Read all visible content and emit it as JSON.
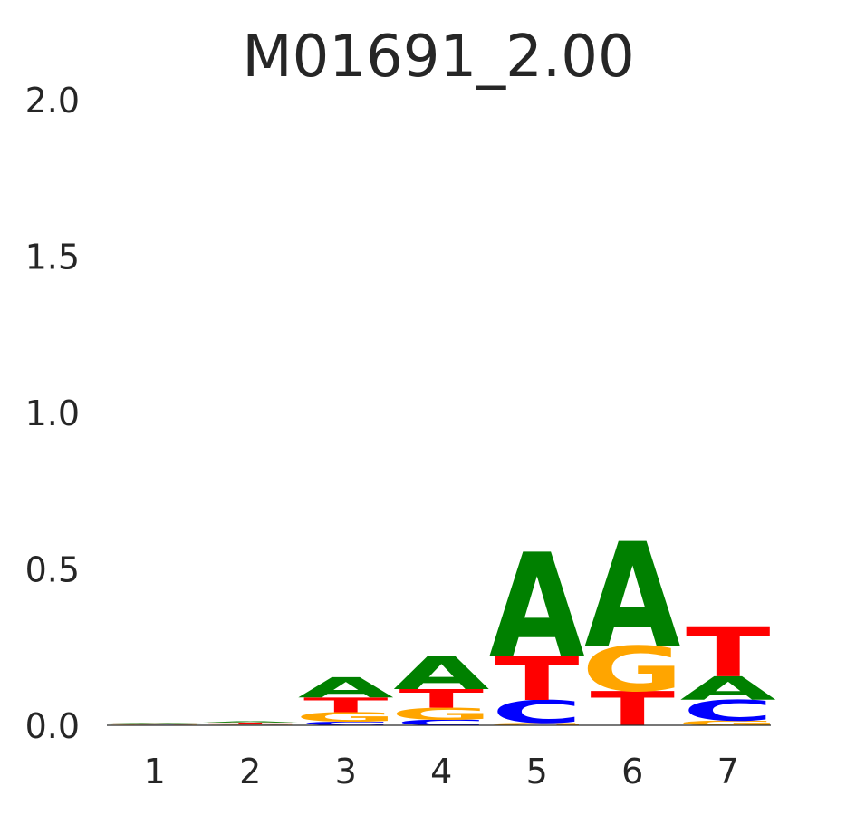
{
  "chart_data": {
    "type": "sequence-logo",
    "title": "M01691_2.00",
    "xlabel": "",
    "ylabel": "",
    "ylim": [
      0,
      2.0
    ],
    "yticks": [
      "2.0",
      "1.5",
      "1.0",
      "0.5",
      "0.0"
    ],
    "ytick_values": [
      2.0,
      1.5,
      1.0,
      0.5,
      0.0
    ],
    "grid": false,
    "colors": {
      "A": "#008000",
      "C": "#0000ff",
      "G": "#ffa500",
      "T": "#ff0000"
    },
    "positions": [
      {
        "label": "1",
        "stack": [
          {
            "letter": "C",
            "height": 0.002
          },
          {
            "letter": "G",
            "height": 0.002
          },
          {
            "letter": "T",
            "height": 0.002
          },
          {
            "letter": "A",
            "height": 0.002
          }
        ]
      },
      {
        "label": "2",
        "stack": [
          {
            "letter": "C",
            "height": 0.002
          },
          {
            "letter": "G",
            "height": 0.003
          },
          {
            "letter": "T",
            "height": 0.004
          },
          {
            "letter": "A",
            "height": 0.004
          }
        ]
      },
      {
        "label": "3",
        "stack": [
          {
            "letter": "C",
            "height": 0.012
          },
          {
            "letter": "G",
            "height": 0.03
          },
          {
            "letter": "T",
            "height": 0.047
          },
          {
            "letter": "A",
            "height": 0.065
          }
        ]
      },
      {
        "label": "4",
        "stack": [
          {
            "letter": "C",
            "height": 0.018
          },
          {
            "letter": "G",
            "height": 0.038
          },
          {
            "letter": "T",
            "height": 0.06
          },
          {
            "letter": "A",
            "height": 0.105
          }
        ]
      },
      {
        "label": "5",
        "stack": [
          {
            "letter": "G",
            "height": 0.008
          },
          {
            "letter": "C",
            "height": 0.073
          },
          {
            "letter": "T",
            "height": 0.14
          },
          {
            "letter": "A",
            "height": 0.335
          }
        ]
      },
      {
        "label": "6",
        "stack": [
          {
            "letter": "T",
            "height": 0.11
          },
          {
            "letter": "G",
            "height": 0.145
          },
          {
            "letter": "A",
            "height": 0.335
          }
        ]
      },
      {
        "label": "7",
        "stack": [
          {
            "letter": "G",
            "height": 0.015
          },
          {
            "letter": "C",
            "height": 0.067
          },
          {
            "letter": "A",
            "height": 0.075
          },
          {
            "letter": "T",
            "height": 0.16
          }
        ]
      }
    ]
  }
}
